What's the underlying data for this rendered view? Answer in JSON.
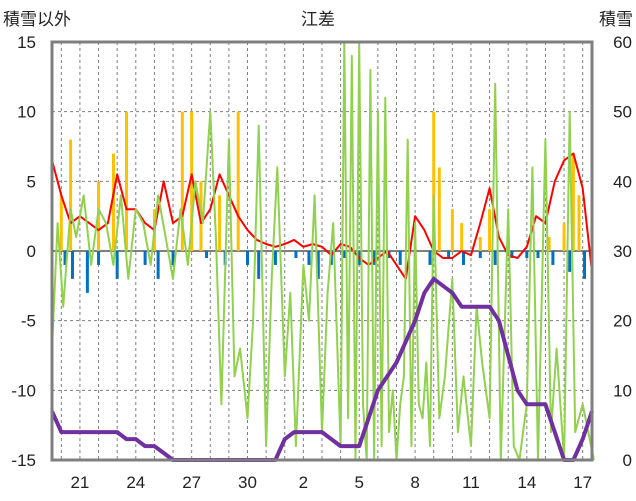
{
  "chart_data": {
    "type": "line",
    "title": "江差",
    "ylabel_left": "積雪以外",
    "ylabel_right": "積雪",
    "ylim_left": [
      -15,
      15
    ],
    "ylim_right": [
      0,
      60
    ],
    "yticks_left": [
      "15",
      "10",
      "5",
      "0",
      "-5",
      "-10",
      "-15"
    ],
    "yticks_right": [
      "60",
      "50",
      "40",
      "30",
      "20",
      "10",
      "0"
    ],
    "xticks": [
      "21",
      "24",
      "27",
      "30",
      "2",
      "5",
      "8",
      "11",
      "14",
      "17"
    ],
    "grid": true,
    "colors": {
      "temperature": "#ff0000",
      "sunshine": "#92d050",
      "precipitation": "#ffc000",
      "negative_bars": "#0070c0",
      "snow_depth": "#7030a0",
      "frame": "#7f7f7f"
    },
    "series": [
      {
        "axis": "left",
        "color": "#ff0000",
        "x": [
          19.5,
          20,
          20.5,
          21,
          21.5,
          22,
          22.5,
          23,
          23.5,
          24,
          24.5,
          25,
          25.5,
          26,
          26.5,
          27,
          27.5,
          28,
          28.5,
          29,
          29.5,
          30,
          30.5,
          31,
          31.5,
          32,
          32.5,
          33,
          33.5,
          34,
          34.5,
          35,
          35.5,
          36,
          36.5,
          37,
          37.5,
          38,
          38.5,
          39,
          39.5,
          40,
          40.5,
          41,
          41.5,
          42,
          42.5,
          43,
          43.5,
          44,
          44.5,
          45,
          45.5,
          46,
          46.5,
          47,
          47.5,
          48,
          48.5
        ],
        "values": [
          6.5,
          4,
          2,
          2.5,
          2,
          1.5,
          2,
          5.5,
          3,
          3,
          2,
          1.5,
          5,
          2,
          2.5,
          5.5,
          2,
          3,
          5.5,
          4,
          2.5,
          1.5,
          0.8,
          0.5,
          0.3,
          0.5,
          0.8,
          0.3,
          0.5,
          0.3,
          -0.3,
          0.5,
          0.3,
          -0.5,
          -1,
          -0.5,
          0,
          -1,
          -2,
          2.5,
          1.5,
          0,
          -0.5,
          -0.5,
          0,
          -0.3,
          2,
          4.5,
          1,
          -0.3,
          -0.5,
          0.3,
          2.5,
          2,
          5,
          6.5,
          7,
          4.5,
          -1.5
        ]
      },
      {
        "axis": "left",
        "color": "#92d050",
        "x": [
          19.5,
          19.8,
          20.1,
          20.5,
          20.8,
          21.2,
          21.6,
          22,
          22.4,
          22.8,
          23.2,
          23.6,
          24,
          24.4,
          24.8,
          25.2,
          25.6,
          26,
          26.4,
          26.8,
          27.2,
          27.6,
          28,
          28.3,
          28.6,
          29,
          29.3,
          29.6,
          30,
          30.3,
          30.6,
          31,
          31.3,
          31.6,
          32,
          32.3,
          32.6,
          33,
          33.3,
          33.6,
          34,
          34.3,
          34.6,
          35,
          35.2,
          35.4,
          35.6,
          35.8,
          36,
          36.2,
          36.4,
          36.6,
          36.8,
          37,
          37.2,
          37.4,
          37.6,
          37.8,
          38,
          38.2,
          38.4,
          38.6,
          38.8,
          39,
          39.2,
          39.4,
          39.6,
          39.8,
          40,
          40.3,
          40.6,
          41,
          41.3,
          41.6,
          42,
          42.3,
          42.6,
          43,
          43.3,
          43.6,
          44,
          44.3,
          44.6,
          45,
          45.3,
          45.6,
          46,
          46.3,
          46.6,
          47,
          47.3,
          47.6,
          48,
          48.3,
          48.6
        ],
        "values": [
          -7,
          2,
          -4,
          3,
          1,
          4,
          -1,
          3,
          2,
          -1,
          4,
          -2,
          3,
          2,
          -1,
          4,
          1,
          -2,
          3,
          -1,
          5,
          2,
          10,
          1,
          -11,
          8,
          -9,
          -7,
          -12,
          -5,
          9,
          -14,
          -2,
          6,
          -9,
          -3,
          -14,
          -1,
          -5,
          4,
          -13,
          -3,
          2,
          -14,
          15,
          -12,
          14,
          -15,
          15,
          -11,
          -15,
          13,
          -15,
          10,
          -14,
          11,
          -13,
          -10,
          -15,
          -11,
          -9,
          8,
          -14,
          2,
          -11,
          -12,
          -8,
          -14,
          4,
          -12,
          -9,
          -2,
          -13,
          -9,
          -14,
          -4,
          -8,
          -12,
          12,
          -15,
          3,
          -14,
          -15,
          -11,
          6,
          -15,
          8,
          -13,
          -7,
          -15,
          10,
          -13,
          -11,
          -13,
          -15
        ]
      },
      {
        "axis": "right",
        "color": "#7030a0",
        "x": [
          19.5,
          20,
          20.5,
          21,
          21.5,
          22,
          22.5,
          23,
          23.5,
          24,
          24.5,
          25,
          25.5,
          26,
          26.5,
          27,
          27.5,
          28,
          28.5,
          29,
          29.5,
          30,
          30.5,
          31,
          31.5,
          32,
          32.5,
          33,
          33.5,
          34,
          34.5,
          35,
          35.5,
          36,
          36.5,
          37,
          37.5,
          38,
          38.5,
          39,
          39.5,
          40,
          40.5,
          41,
          41.5,
          42,
          42.5,
          43,
          43.5,
          44,
          44.5,
          45,
          45.5,
          46,
          46.5,
          47,
          47.5,
          48,
          48.5
        ],
        "values": [
          7,
          4,
          4,
          4,
          4,
          4,
          4,
          4,
          3,
          3,
          2,
          2,
          1,
          0,
          0,
          0,
          0,
          0,
          0,
          0,
          0,
          0,
          0,
          0,
          0,
          3,
          4,
          4,
          4,
          4,
          3,
          2,
          2,
          2,
          6,
          10,
          12,
          14,
          17,
          20,
          24,
          26,
          25,
          24,
          22,
          22,
          22,
          22,
          20,
          15,
          10,
          8,
          8,
          8,
          4,
          0,
          0,
          3,
          7
        ]
      },
      {
        "axis": "left",
        "color": "#ffc000",
        "type": "bar",
        "x": [
          20,
          20.5,
          22,
          22.8,
          23.5,
          25,
          26.5,
          27,
          27.5,
          28.5,
          29.5,
          40,
          40.3,
          41,
          41.5,
          42.5,
          43,
          46.2,
          47,
          47.5,
          47.8
        ],
        "values": [
          4,
          8,
          5,
          7,
          10,
          3,
          10,
          10,
          5,
          4,
          10,
          10,
          6,
          3,
          2,
          1,
          3,
          1,
          2,
          7,
          4
        ]
      },
      {
        "axis": "left",
        "color": "#0070c0",
        "type": "bar",
        "x": [
          20.2,
          20.6,
          21.4,
          22,
          23,
          24.5,
          25.2,
          26,
          27.8,
          28.8,
          30,
          30.6,
          31.5,
          32.6,
          33.3,
          33.8,
          34.5,
          35.2,
          36,
          36.8,
          37.6,
          38.2,
          39,
          39.8,
          40.8,
          41.6,
          42.5,
          43.3,
          44.2,
          45,
          45.6,
          46.4,
          47.3,
          48.1
        ],
        "values": [
          -1,
          -2,
          -3,
          -1,
          -2,
          -1,
          -2,
          -1,
          -0.5,
          -1,
          -1,
          -2,
          -1,
          -0.5,
          -1,
          -2,
          -1,
          -0.5,
          -1,
          -1,
          -0.5,
          -1,
          -0.5,
          -1,
          -0.5,
          -1,
          -0.5,
          -1,
          -0.5,
          -0.5,
          -0.5,
          -1,
          -1.5,
          -2
        ]
      }
    ]
  }
}
